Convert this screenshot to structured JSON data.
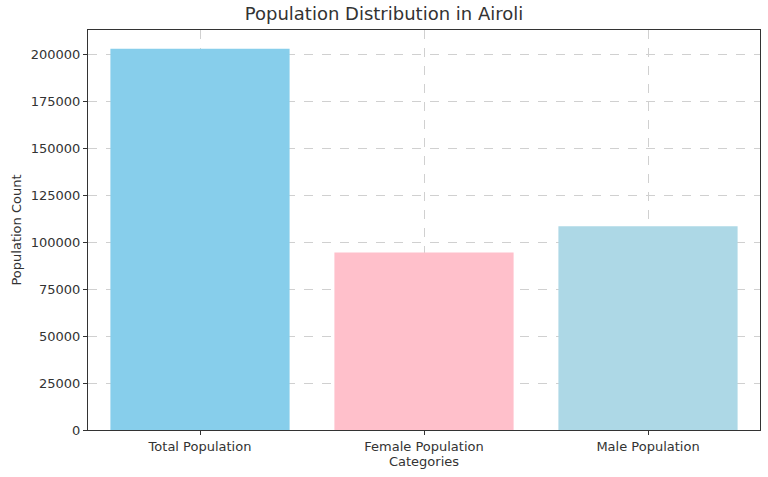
{
  "chart_data": {
    "type": "bar",
    "title": "Population Distribution in Airoli",
    "x_label": "Categories",
    "y_label": "Population Count",
    "categories": [
      "Total Population",
      "Female Population",
      "Male Population"
    ],
    "values": [
      203000,
      94500,
      108500
    ],
    "colors": [
      "#87ceeb",
      "#ffc0cb",
      "#add8e6"
    ],
    "ylim": [
      0,
      213000
    ],
    "yticks": [
      0,
      25000,
      50000,
      75000,
      100000,
      125000,
      150000,
      175000,
      200000
    ],
    "grid": true
  }
}
